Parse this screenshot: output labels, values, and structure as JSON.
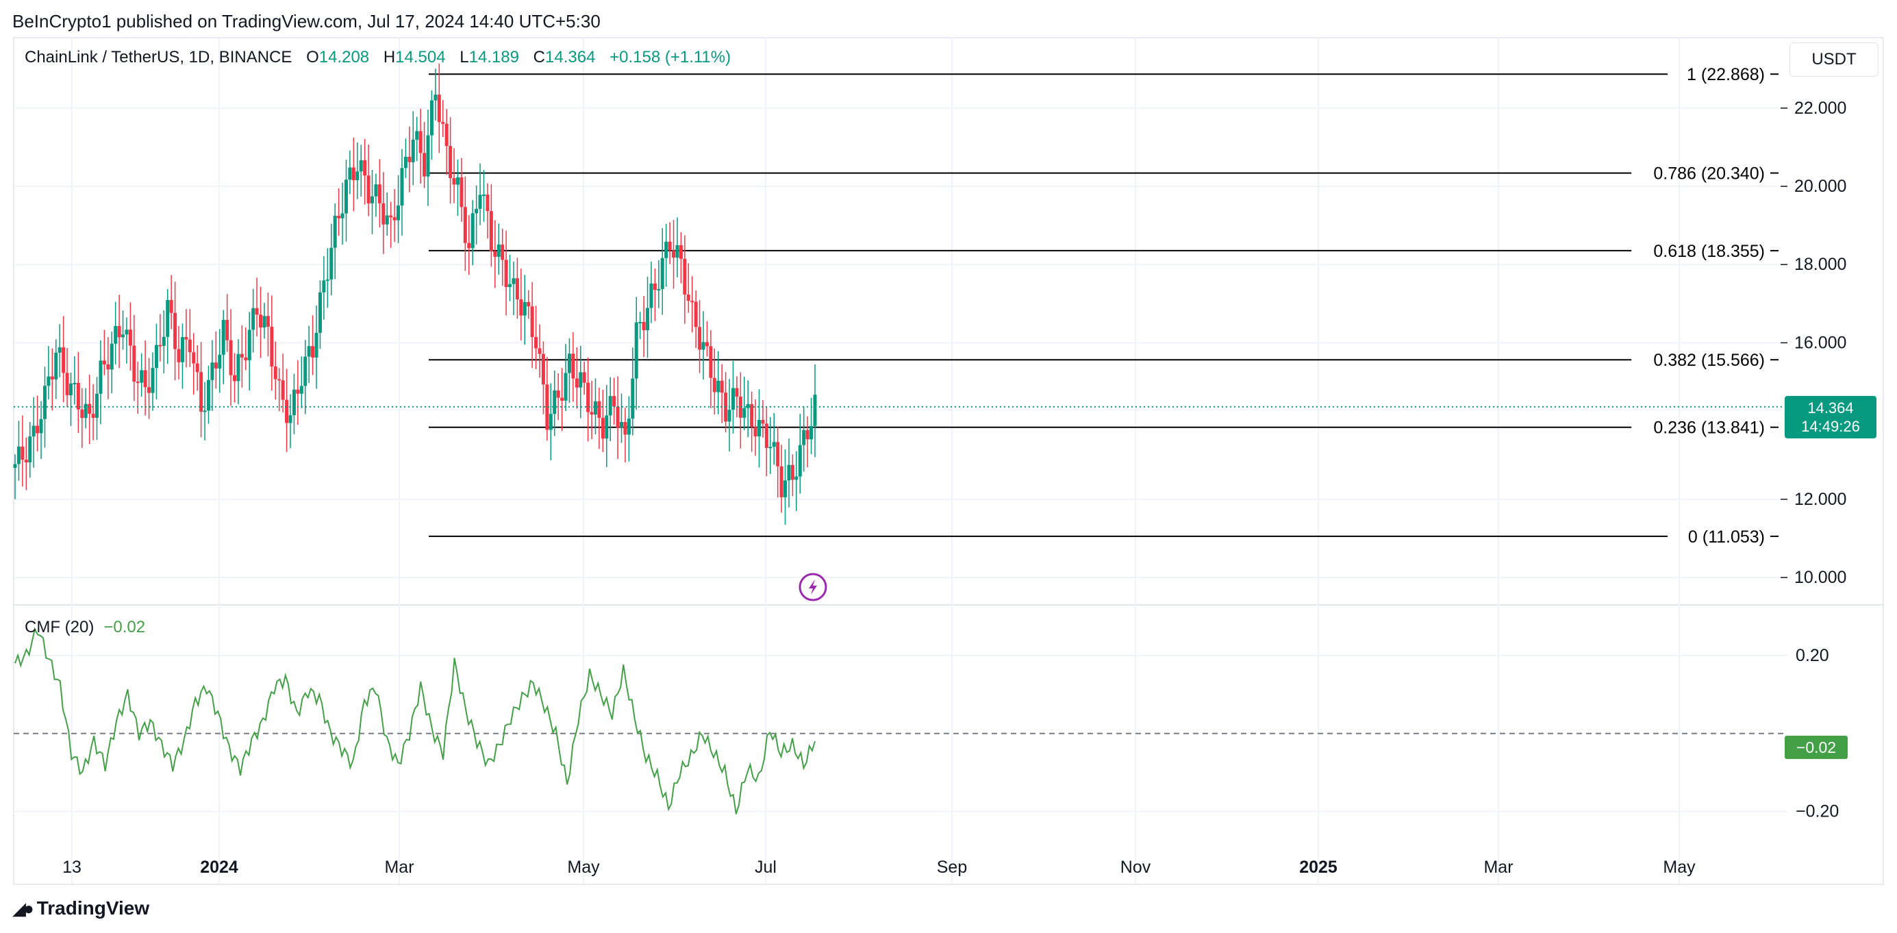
{
  "publisher_line": "BeInCrypto1 published on TradingView.com, Jul 17, 2024 14:40 UTC+5:30",
  "symbol": {
    "name": "ChainLink / TetherUS, 1D, BINANCE",
    "o_label": "O",
    "o_value": "14.208",
    "h_label": "H",
    "h_value": "14.504",
    "l_label": "L",
    "l_value": "14.189",
    "c_label": "C",
    "c_value": "14.364",
    "change": "+0.158 (+1.11%)"
  },
  "currency_button": "USDT",
  "price_tag": {
    "price": "14.364",
    "countdown": "14:49:26"
  },
  "cmf": {
    "label": "CMF (20)",
    "value": "−0.02",
    "tag": "−0.02"
  },
  "brand": "TradingView",
  "colors": {
    "up": "#089981",
    "down": "#f23645",
    "cmf": "#43a047",
    "fib": "#000000",
    "accent": "#9c27b0"
  },
  "icons": {
    "alert": "lightning-icon",
    "logo": "tradingview-logo-icon"
  },
  "chart_data": [
    {
      "type": "candlestick",
      "ylim": [
        9.3,
        23.8
      ],
      "price_ticks": [
        "10.000",
        "12.000",
        "16.000",
        "18.000",
        "20.000",
        "22.000"
      ],
      "time_ticks": [
        "13",
        "2024",
        "Mar",
        "May",
        "Jul",
        "Sep",
        "Nov",
        "2025",
        "Mar",
        "May"
      ],
      "last_price": 14.364,
      "fibonacci": [
        {
          "label": "1 (22.868)",
          "value": 22.868
        },
        {
          "label": "0.786 (20.340)",
          "value": 20.34
        },
        {
          "label": "0.618 (18.355)",
          "value": 18.355
        },
        {
          "label": "0.382 (15.566)",
          "value": 15.566
        },
        {
          "label": "0.236 (13.841)",
          "value": 13.841
        },
        {
          "label": "0 (11.053)",
          "value": 11.053
        }
      ],
      "closes": [
        13.1,
        13.6,
        14.6,
        15.8,
        15.0,
        14.5,
        14.0,
        15.2,
        15.9,
        16.5,
        15.3,
        14.8,
        15.6,
        16.9,
        15.7,
        16.1,
        14.3,
        15.2,
        16.3,
        15.1,
        15.9,
        16.9,
        16.2,
        14.7,
        14.1,
        15.2,
        15.9,
        17.5,
        18.9,
        20.0,
        20.6,
        19.9,
        19.6,
        18.9,
        20.2,
        21.3,
        20.6,
        22.5,
        20.8,
        19.9,
        18.4,
        20.1,
        18.6,
        18.0,
        17.3,
        16.9,
        16.1,
        14.1,
        14.6,
        15.4,
        15.0,
        14.3,
        13.9,
        14.5,
        13.4,
        16.2,
        16.9,
        17.7,
        18.6,
        18.0,
        16.7,
        15.9,
        15.0,
        14.3,
        14.6,
        14.1,
        13.8,
        13.5,
        12.4,
        12.6,
        13.5,
        14.364
      ],
      "end_date": "2024-07-17"
    },
    {
      "type": "line",
      "title": "CMF (20)",
      "ylim": [
        -0.28,
        0.33
      ],
      "ticks": [
        "0.20",
        "−0.20"
      ],
      "zero_line": 0.0,
      "values": [
        0.18,
        0.2,
        0.27,
        0.19,
        0.12,
        -0.05,
        -0.1,
        -0.02,
        -0.08,
        0.03,
        0.1,
        0.0,
        0.03,
        -0.03,
        -0.08,
        -0.02,
        0.08,
        0.12,
        0.05,
        -0.04,
        -0.09,
        -0.02,
        0.03,
        0.12,
        0.14,
        0.05,
        0.11,
        0.09,
        0.0,
        -0.04,
        -0.08,
        0.08,
        0.12,
        -0.02,
        -0.08,
        0.0,
        0.12,
        0.01,
        -0.05,
        0.18,
        0.06,
        -0.02,
        -0.08,
        -0.03,
        0.04,
        0.09,
        0.13,
        0.07,
        0.0,
        -0.13,
        0.04,
        0.15,
        0.1,
        0.05,
        0.16,
        0.04,
        -0.06,
        -0.11,
        -0.19,
        -0.1,
        -0.06,
        0.0,
        -0.05,
        -0.1,
        -0.2,
        -0.09,
        -0.12,
        0.01,
        -0.05,
        -0.03,
        -0.08,
        -0.02
      ]
    }
  ]
}
